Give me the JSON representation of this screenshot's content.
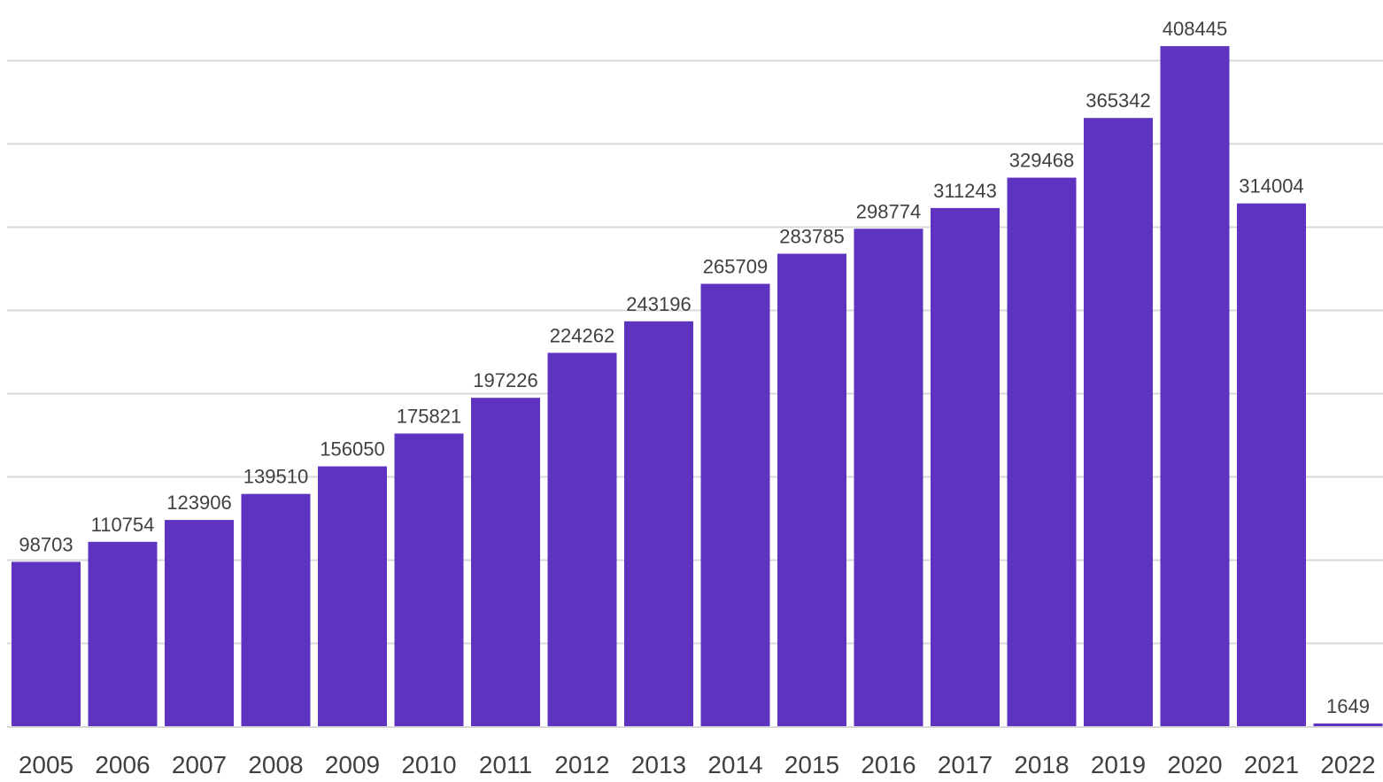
{
  "chart_data": {
    "type": "bar",
    "title": "",
    "xlabel": "",
    "ylabel": "",
    "categories": [
      "2005",
      "2006",
      "2007",
      "2008",
      "2009",
      "2010",
      "2011",
      "2012",
      "2013",
      "2014",
      "2015",
      "2016",
      "2017",
      "2018",
      "2019",
      "2020",
      "2021",
      "2022"
    ],
    "values": [
      98703,
      110754,
      123906,
      139510,
      156050,
      175821,
      197226,
      224262,
      243196,
      265709,
      283785,
      298774,
      311243,
      329468,
      365342,
      408445,
      314004,
      1649
    ],
    "ylim": [
      0,
      400000
    ],
    "gridlines": [
      50000,
      100000,
      150000,
      200000,
      250000,
      300000,
      350000,
      400000
    ],
    "grid": true,
    "y_axis_labels_visible": false,
    "legend": "none",
    "bar_color": "#5e33bf"
  }
}
